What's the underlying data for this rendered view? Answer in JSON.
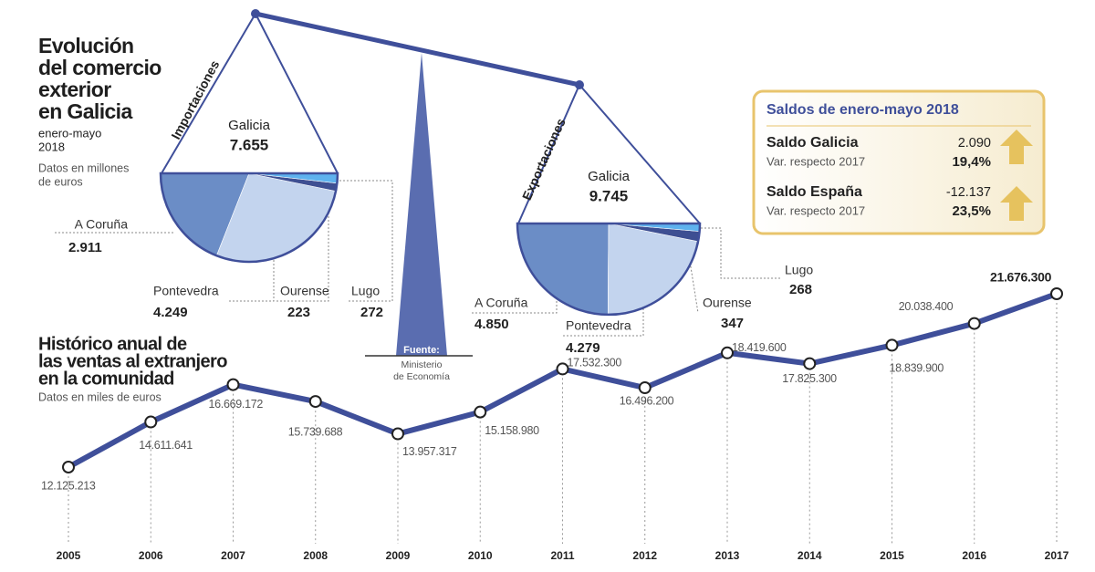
{
  "title_lines": [
    "Evolución",
    "del comercio",
    "exterior",
    "en Galicia"
  ],
  "period_lines": [
    "enero-mayo",
    "2018"
  ],
  "units_lines": [
    "Datos en millones",
    "de euros"
  ],
  "source": {
    "label": "Fuente:",
    "lines": [
      "Ministerio",
      "de Economía"
    ]
  },
  "balance_box": {
    "title": "Saldos de enero-mayo 2018",
    "rows": [
      {
        "name": "Saldo Galicia",
        "value": "2.090",
        "change_label": "Var. respecto 2017",
        "change": "19,4%"
      },
      {
        "name": "Saldo España",
        "value": "-12.137",
        "change_label": "Var. respecto 2017",
        "change": "23,5%"
      }
    ]
  },
  "chart_data": [
    {
      "type": "pie",
      "title": "Importaciones",
      "center_label": "Galicia",
      "total": 7655,
      "total_label": "7.655",
      "categories": [
        "A Coruña",
        "Pontevedra",
        "Ourense",
        "Lugo"
      ],
      "values": [
        2911,
        4249,
        223,
        272
      ],
      "value_labels": [
        "2.911",
        "4.249",
        "223",
        "272"
      ],
      "colors": [
        "#6b8dc6",
        "#c3d4ee",
        "#3e4f92",
        "#5eb2ee"
      ]
    },
    {
      "type": "pie",
      "title": "Exportaciones",
      "center_label": "Galicia",
      "total": 9745,
      "total_label": "9.745",
      "categories": [
        "A Coruña",
        "Pontevedra",
        "Ourense",
        "Lugo"
      ],
      "values": [
        4850,
        4279,
        347,
        268
      ],
      "value_labels": [
        "4.850",
        "4.279",
        "347",
        "268"
      ],
      "colors": [
        "#6b8dc6",
        "#c3d4ee",
        "#3e4f92",
        "#5eb2ee"
      ]
    },
    {
      "type": "line",
      "title_lines": [
        "Histórico anual de",
        "las ventas al extranjero",
        "en la comunidad"
      ],
      "subtitle": "Datos en miles de euros",
      "x": [
        2005,
        2006,
        2007,
        2008,
        2009,
        2010,
        2011,
        2012,
        2013,
        2014,
        2015,
        2016,
        2017
      ],
      "values": [
        12125213,
        14611641,
        16669172,
        15739688,
        13957317,
        15158980,
        17532300,
        16496200,
        18419600,
        17825300,
        18839900,
        20038400,
        21676300
      ],
      "value_labels": [
        "12.125.213",
        "14.611.641",
        "16.669.172",
        "15.739.688",
        "13.957.317",
        "15.158.980",
        "17.532.300",
        "16.496.200",
        "18.419.600",
        "17.825.300",
        "18.839.900",
        "20.038.400",
        "21.676.300"
      ],
      "color": "#3f4f9a"
    }
  ]
}
